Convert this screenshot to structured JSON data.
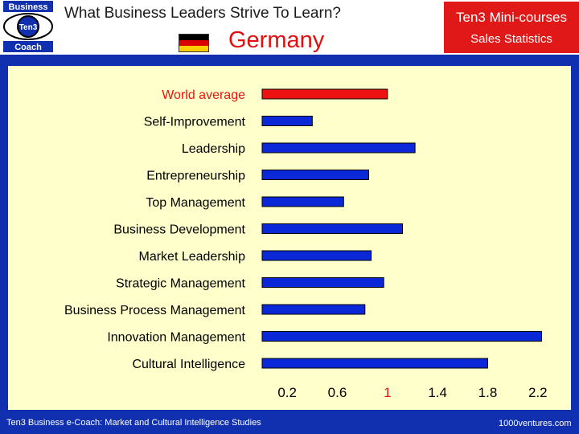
{
  "header": {
    "logo_top": "Business",
    "logo_mid": "Ten3",
    "logo_bottom": "Coach",
    "title": "What Business Leaders Strive To Learn?",
    "subtitle": "Germany",
    "badge_title": "Ten3 Mini-courses",
    "badge_subtitle": "Sales Statistics"
  },
  "colors": {
    "background": "#1030b0",
    "panel": "#ffffcc",
    "bar": "#0a28d8",
    "highlight": "#ee1111",
    "flag": [
      "#000000",
      "#dd0000",
      "#ffce00"
    ]
  },
  "chart_data": {
    "type": "bar",
    "orientation": "horizontal",
    "categories": [
      "World average",
      "Self-Improvement",
      "Leadership",
      "Entrepreneurship",
      "Top Management",
      "Business Development",
      "Market Leadership",
      "Strategic Management",
      "Business Process Management",
      "Innovation Management",
      "Cultural Intelligence"
    ],
    "values": [
      1.0,
      0.4,
      1.22,
      0.85,
      0.65,
      1.12,
      0.87,
      0.97,
      0.82,
      2.23,
      1.8
    ],
    "highlight_index": 0,
    "ticks": [
      "0.2",
      "0.6",
      "1",
      "1.4",
      "1.8",
      "2.2"
    ],
    "tick_values": [
      0.2,
      0.6,
      1.0,
      1.4,
      1.8,
      2.2
    ],
    "highlight_tick": "1",
    "xlim": [
      0.0,
      2.4
    ],
    "grid": false,
    "legend": "none"
  },
  "footer": {
    "left": "Ten3 Business e-Coach: Market and Cultural Intelligence Studies",
    "right": "1000ventures.com"
  }
}
